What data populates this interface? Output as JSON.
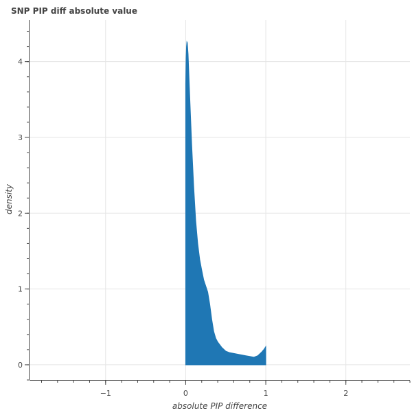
{
  "chart_data": {
    "type": "area",
    "title": "SNP PIP diff absolute value",
    "xlabel": "absolute PIP difference",
    "ylabel": "density",
    "xlim": [
      -1.95,
      2.8
    ],
    "ylim": [
      -0.2,
      4.55
    ],
    "x_ticks": [
      -1,
      0,
      1,
      2
    ],
    "x_tick_labels": [
      "−1",
      "0",
      "1",
      "2"
    ],
    "y_ticks": [
      0,
      1,
      2,
      3,
      4
    ],
    "y_tick_labels": [
      "0",
      "1",
      "2",
      "3",
      "4"
    ],
    "x_minor_step": 0.2,
    "y_minor_step": 0.2,
    "grid": true,
    "fill_color": "#1f77b4",
    "grid_color": "#e5e5e5",
    "axis_color": "#444444",
    "series": [
      {
        "x": [
          0.0,
          0.005,
          0.01,
          0.015,
          0.02,
          0.03,
          0.05,
          0.075,
          0.1,
          0.125,
          0.15,
          0.175,
          0.2,
          0.225,
          0.25,
          0.275,
          0.3,
          0.325,
          0.35,
          0.375,
          0.4,
          0.45,
          0.5,
          0.55,
          0.6,
          0.65,
          0.7,
          0.75,
          0.8,
          0.85,
          0.9,
          0.95,
          0.975,
          1.0
        ],
        "y": [
          3.7,
          4.05,
          4.2,
          4.26,
          4.25,
          4.1,
          3.55,
          2.9,
          2.35,
          1.9,
          1.6,
          1.39,
          1.25,
          1.12,
          1.04,
          0.96,
          0.8,
          0.6,
          0.44,
          0.35,
          0.3,
          0.23,
          0.18,
          0.16,
          0.15,
          0.14,
          0.13,
          0.12,
          0.11,
          0.1,
          0.12,
          0.17,
          0.2,
          0.24
        ]
      }
    ]
  }
}
